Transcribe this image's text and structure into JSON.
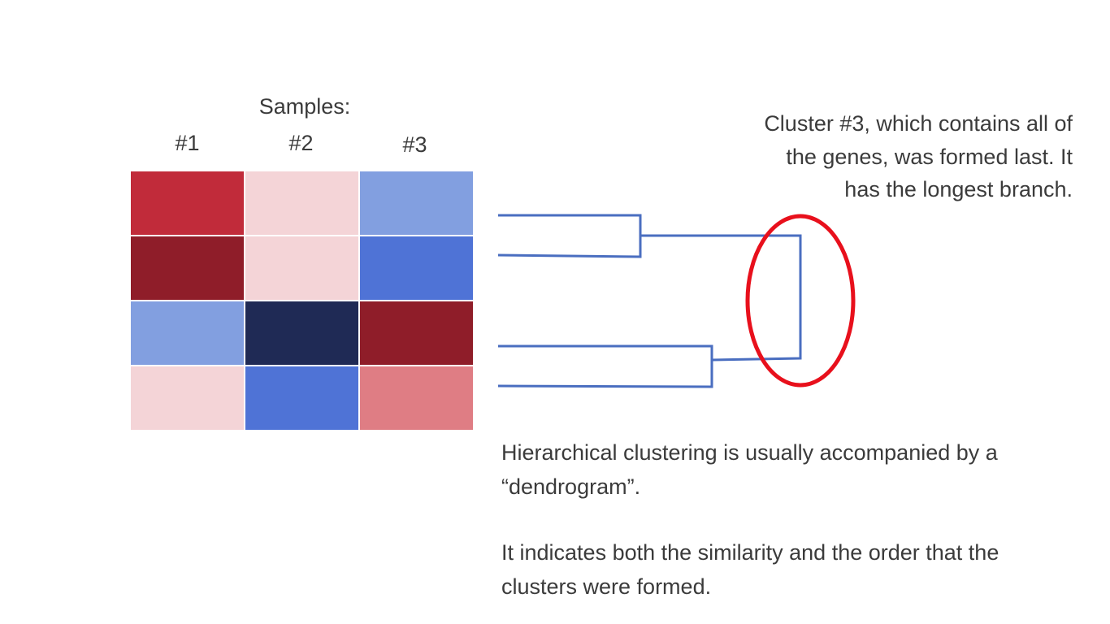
{
  "samples_title": "Samples:",
  "columns": [
    "#1",
    "#2",
    "#3"
  ],
  "heatmap": [
    [
      "#c12b3a",
      "#f4d4d7",
      "#829fe0"
    ],
    [
      "#8f1d29",
      "#f4d4d7",
      "#4f73d6"
    ],
    [
      "#829fe0",
      "#1f2a55",
      "#8f1d29"
    ],
    [
      "#f4d4d7",
      "#4f73d6",
      "#df7d84"
    ]
  ],
  "annotation": "Cluster #3, which contains all of the genes, was formed last. It has the longest branch.",
  "paragraph1": "Hierarchical clustering is usually accompanied by a “dendrogram”.",
  "paragraph2": "It indicates both the similarity and the order that the clusters were formed.",
  "colors": {
    "dendrogram_line": "#4a6ec0",
    "highlight_ellipse": "#e8101c",
    "text": "#3b3b3b"
  }
}
